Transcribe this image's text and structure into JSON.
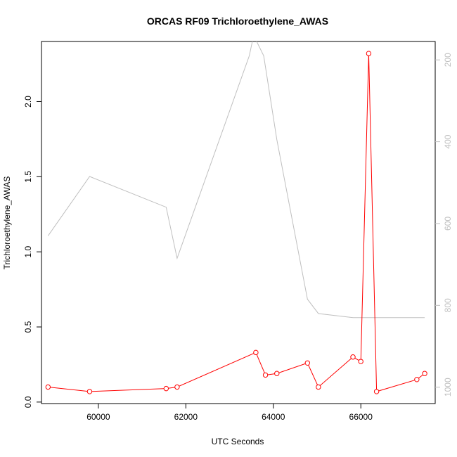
{
  "chart_data": {
    "type": "line",
    "title": "ORCAS RF09 Trichloroethylene_AWAS",
    "xlabel": "UTC Seconds",
    "ylabel": "Trichloroethylene_AWAS",
    "xlim": [
      58700,
      67700
    ],
    "ylim": [
      -0.01,
      2.4
    ],
    "y2lim": [
      1040,
      155
    ],
    "x_ticks": [
      60000,
      62000,
      64000,
      66000
    ],
    "y_ticks": [
      0.0,
      0.5,
      1.0,
      1.5,
      2.0
    ],
    "y2_ticks": [
      200,
      400,
      600,
      800,
      1000
    ],
    "grid": false,
    "series": [
      {
        "axis": "left",
        "color": "#ff0000",
        "marker": "open-circle",
        "x": [
          58850,
          59800,
          61550,
          61800,
          63600,
          63820,
          64080,
          64780,
          65030,
          65820,
          66000,
          66180,
          66360,
          67280,
          67460
        ],
        "y": [
          0.1,
          0.07,
          0.09,
          0.1,
          0.33,
          0.18,
          0.19,
          0.26,
          0.1,
          0.3,
          0.27,
          2.32,
          0.07,
          0.15,
          0.19
        ]
      },
      {
        "axis": "right",
        "color": "#bfbfbf",
        "marker": "none",
        "x": [
          58850,
          59800,
          61550,
          61800,
          63450,
          63550,
          63780,
          64080,
          64780,
          65030,
          65820,
          66180,
          67460
        ],
        "y": [
          630,
          485,
          560,
          685,
          190,
          140,
          190,
          395,
          785,
          820,
          830,
          830,
          830
        ]
      }
    ]
  }
}
